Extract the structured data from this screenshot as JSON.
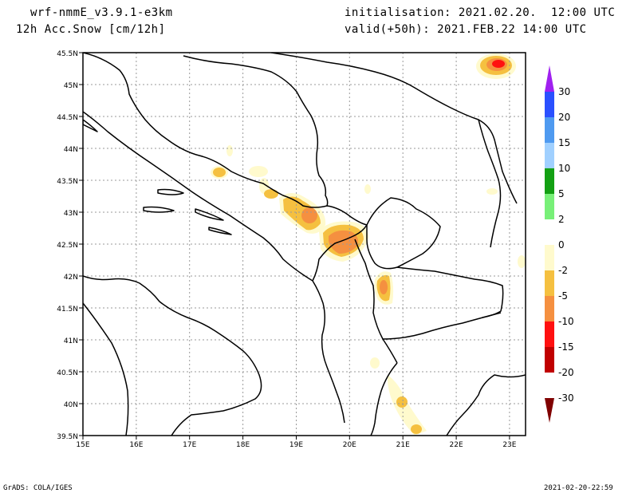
{
  "header": {
    "model": "wrf-nmmE_v3.9.1-e3km",
    "field": "12h Acc.Snow [cm/12h]",
    "init": "initialisation: 2021.02.20.  12:00 UTC",
    "valid": "valid(+50h): 2021.FEB.22 14:00 UTC"
  },
  "map": {
    "lon_labels": [
      "15E",
      "16E",
      "17E",
      "18E",
      "19E",
      "20E",
      "21E",
      "22E",
      "23E"
    ],
    "lat_labels": [
      "45.5N",
      "45N",
      "44.5N",
      "44N",
      "43.5N",
      "43N",
      "42.5N",
      "42N",
      "41.5N",
      "41N",
      "40.5N",
      "40N",
      "39.5N"
    ],
    "lon_range": [
      15,
      23.3
    ],
    "lat_range": [
      39.5,
      45.5
    ]
  },
  "legend": {
    "labels": [
      "30",
      "20",
      "15",
      "10",
      "5",
      "2",
      "0",
      "-2",
      "-5",
      "-10",
      "-15",
      "-20",
      "-30"
    ],
    "colors": [
      "#a020f0",
      "#2a50ff",
      "#4f9af0",
      "#a0d0ff",
      "#13a013",
      "#78f078",
      "#ffffff",
      "#fffacd",
      "#f5c040",
      "#f59040",
      "#ff1010",
      "#c00000",
      "#800000"
    ]
  },
  "footer": {
    "left": "GrADS: COLA/IGES",
    "right": "2021-02-20-22:59"
  }
}
